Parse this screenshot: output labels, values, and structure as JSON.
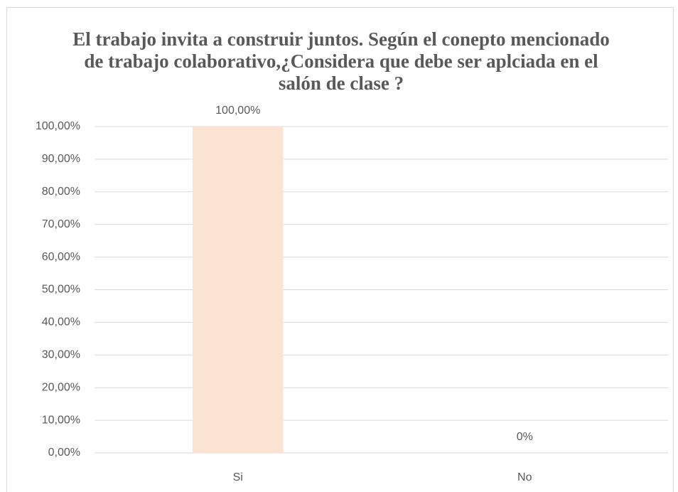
{
  "chart_data": {
    "type": "bar",
    "title": "El trabajo invita a construir juntos. Según el conepto mencionado de trabajo colaborativo,¿Considera que debe ser aplciada en el salón de clase ?",
    "categories": [
      "Si",
      "No"
    ],
    "values": [
      100,
      0
    ],
    "value_labels": [
      "100,00%",
      "0%"
    ],
    "color": "#fbe3d4",
    "ylim": [
      0,
      100
    ],
    "yticks": [
      {
        "value": 0,
        "label": "0,00%"
      },
      {
        "value": 10,
        "label": "10,00%"
      },
      {
        "value": 20,
        "label": "20,00%"
      },
      {
        "value": 30,
        "label": "30,00%"
      },
      {
        "value": 40,
        "label": "40,00%"
      },
      {
        "value": 50,
        "label": "50,00%"
      },
      {
        "value": 60,
        "label": "60,00%"
      },
      {
        "value": 70,
        "label": "70,00%"
      },
      {
        "value": 80,
        "label": "80,00%"
      },
      {
        "value": 90,
        "label": "90,00%"
      },
      {
        "value": 100,
        "label": "100,00%"
      }
    ],
    "grid": true
  }
}
